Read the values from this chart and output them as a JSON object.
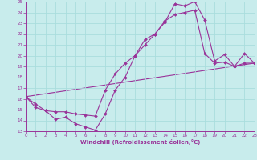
{
  "xlabel": "Windchill (Refroidissement éolien,°C)",
  "bg_color": "#c8ecec",
  "line_color": "#993399",
  "grid_color": "#aadddd",
  "xlim": [
    0,
    23
  ],
  "ylim": [
    13,
    25
  ],
  "xticks": [
    0,
    1,
    2,
    3,
    4,
    5,
    6,
    7,
    8,
    9,
    10,
    11,
    12,
    13,
    14,
    15,
    16,
    17,
    18,
    19,
    20,
    21,
    22,
    23
  ],
  "yticks": [
    13,
    14,
    15,
    16,
    17,
    18,
    19,
    20,
    21,
    22,
    23,
    24,
    25
  ],
  "line1_x": [
    0,
    1,
    2,
    3,
    4,
    5,
    6,
    7,
    8,
    9,
    10,
    11,
    12,
    13,
    14,
    15,
    16,
    17,
    18,
    19,
    20,
    21,
    22,
    23
  ],
  "line1_y": [
    16.2,
    15.2,
    14.9,
    14.1,
    14.3,
    13.7,
    13.4,
    13.1,
    14.6,
    16.8,
    18.0,
    20.0,
    21.5,
    22.0,
    23.1,
    24.8,
    24.6,
    25.0,
    23.3,
    19.5,
    20.1,
    19.0,
    20.2,
    19.3
  ],
  "line2_x": [
    0,
    1,
    2,
    3,
    4,
    5,
    6,
    7,
    8,
    9,
    10,
    11,
    12,
    13,
    14,
    15,
    16,
    17,
    18,
    19,
    20,
    21,
    22,
    23
  ],
  "line2_y": [
    16.2,
    15.5,
    14.9,
    14.8,
    14.8,
    14.6,
    14.5,
    14.4,
    16.8,
    18.3,
    19.3,
    20.0,
    21.0,
    22.0,
    23.2,
    23.8,
    24.0,
    24.2,
    20.2,
    19.3,
    19.4,
    19.0,
    19.3,
    19.3
  ],
  "line3_x": [
    0,
    23
  ],
  "line3_y": [
    16.2,
    19.3
  ]
}
